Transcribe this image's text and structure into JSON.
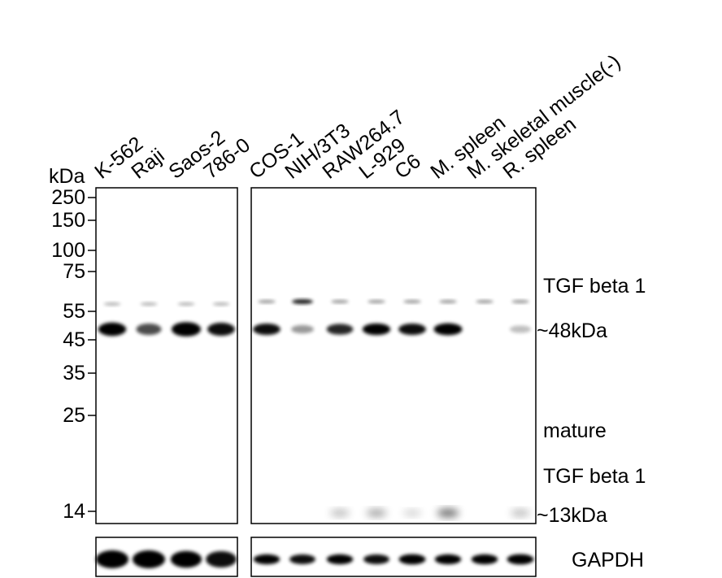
{
  "unit_label": "kDa",
  "lanes_left": [
    "K-562",
    "Raji",
    "Saos-2",
    "786-0"
  ],
  "lanes_right": [
    "COS-1",
    "NIH/3T3",
    "RAW264.7",
    "L-929",
    "C6",
    "M. spleen",
    "M. skeletal muscle(-)",
    "R. spleen"
  ],
  "markers": [
    "250",
    "150",
    "100",
    "75",
    "55",
    "45",
    "35",
    "25",
    "14"
  ],
  "annotations": {
    "precursor_name": "TGF beta 1",
    "precursor_size": "~48kDa",
    "mature_prefix": "mature",
    "mature_name": "TGF beta 1",
    "mature_size": "~13kDa",
    "loading_control": "GAPDH"
  },
  "band_levels": {
    "main_48kDa_left": [
      0.85,
      0.55,
      1.0,
      0.8
    ],
    "main_48kDa_right": [
      0.8,
      0.25,
      0.7,
      0.85,
      0.8,
      0.9,
      0.0,
      0.1
    ],
    "band_13kDa_right": [
      0.0,
      0.0,
      0.15,
      0.25,
      0.05,
      0.45,
      0.0,
      0.15
    ],
    "gapdh_left": [
      1.0,
      1.0,
      0.85,
      0.8
    ],
    "gapdh_right": [
      0.85,
      0.8,
      0.85,
      0.8,
      0.9,
      0.85,
      0.85,
      0.9
    ]
  }
}
